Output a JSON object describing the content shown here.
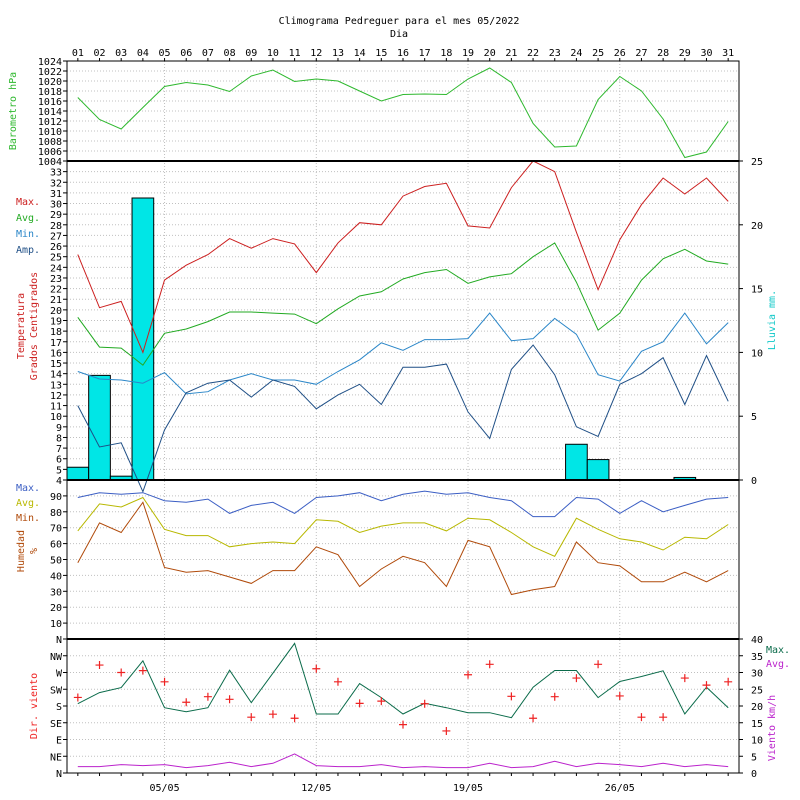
{
  "title": "Climograma Pedreguer para el mes 05/2022",
  "subtitle": "Dia",
  "colors": {
    "frame": "#000000",
    "grid": "#c0c0c0",
    "barometer": "#2eb82e",
    "temp_max": "#cc1f1f",
    "temp_avg": "#22aa22",
    "temp_min": "#2a86c8",
    "temp_amp": "#1f4f86",
    "rain_fill": "#00e6e6",
    "hum_max": "#3b5ec4",
    "hum_avg": "#b8b800",
    "hum_min": "#b04a0a",
    "wind_dir": "#ee2222",
    "wind_max": "#0a6b4a",
    "wind_avg": "#bb22cc"
  },
  "days": [
    "01",
    "02",
    "03",
    "04",
    "05",
    "06",
    "07",
    "08",
    "09",
    "10",
    "11",
    "12",
    "13",
    "14",
    "15",
    "16",
    "17",
    "18",
    "19",
    "20",
    "21",
    "22",
    "23",
    "24",
    "25",
    "26",
    "27",
    "28",
    "29",
    "30",
    "31"
  ],
  "bottom_dates": [
    "05/05",
    "12/05",
    "19/05",
    "26/05"
  ],
  "chart_data": [
    {
      "type": "line",
      "name": "barometer",
      "ylabel": "Barometro hPa",
      "ylim": [
        1004,
        1024
      ],
      "yticks": [
        1004,
        1006,
        1008,
        1010,
        1012,
        1014,
        1016,
        1018,
        1020,
        1022,
        1024
      ],
      "series": [
        {
          "name": "",
          "values": [
            1016.7,
            1012.3,
            1010.4,
            1014.7,
            1018.9,
            1019.7,
            1019.2,
            1017.9,
            1021.0,
            1022.2,
            1019.9,
            1020.4,
            1020.0,
            1018.0,
            1016.0,
            1017.3,
            1017.4,
            1017.3,
            1020.4,
            1022.6,
            1019.7,
            1011.5,
            1006.8,
            1007.0,
            1016.3,
            1020.9,
            1018.0,
            1012.4,
            1004.7,
            1005.8,
            1011.9
          ]
        }
      ]
    },
    {
      "type": "line+bar",
      "name": "temperature",
      "ylabel": "Temperatura Grados Centigrados",
      "y2label": "Lluvia mm.",
      "ylim": [
        4,
        34
      ],
      "yticks": [
        4,
        5,
        6,
        7,
        8,
        9,
        10,
        11,
        12,
        13,
        14,
        15,
        16,
        17,
        18,
        19,
        20,
        21,
        22,
        23,
        24,
        25,
        26,
        27,
        28,
        29,
        30,
        31,
        32,
        33
      ],
      "y2lim": [
        0,
        25
      ],
      "y2ticks": [
        0,
        5,
        10,
        15,
        20,
        25
      ],
      "legend": [
        "Max.",
        "Avg.",
        "Min.",
        "Amp."
      ],
      "series": [
        {
          "name": "Max.",
          "values": [
            25.2,
            20.2,
            20.8,
            16.0,
            22.8,
            24.2,
            25.2,
            26.7,
            25.8,
            26.7,
            26.2,
            23.5,
            26.3,
            28.2,
            28.0,
            30.7,
            31.6,
            31.9,
            27.9,
            27.7,
            31.5,
            34.0,
            33.0,
            27.3,
            21.9,
            26.6,
            29.9,
            32.4,
            30.9,
            32.4,
            30.2
          ]
        },
        {
          "name": "Avg.",
          "values": [
            19.3,
            16.5,
            16.4,
            14.8,
            17.8,
            18.2,
            18.9,
            19.8,
            19.8,
            19.7,
            19.6,
            18.7,
            20.1,
            21.3,
            21.7,
            22.9,
            23.5,
            23.8,
            22.5,
            23.1,
            23.4,
            25.0,
            26.3,
            22.6,
            18.1,
            19.7,
            22.8,
            24.8,
            25.7,
            24.6,
            24.3
          ]
        },
        {
          "name": "Min.",
          "values": [
            14.2,
            13.5,
            13.4,
            13.1,
            14.1,
            12.1,
            12.3,
            13.4,
            14.0,
            13.4,
            13.4,
            13.0,
            14.2,
            15.3,
            16.9,
            16.2,
            17.2,
            17.2,
            17.3,
            19.7,
            17.1,
            17.3,
            19.2,
            17.7,
            13.9,
            13.3,
            16.1,
            17.0,
            19.7,
            16.8,
            18.8
          ]
        },
        {
          "name": "Amp.",
          "values": [
            11.0,
            7.1,
            7.5,
            2.9,
            8.7,
            12.2,
            13.1,
            13.4,
            11.8,
            13.4,
            12.8,
            10.7,
            12.0,
            13.0,
            11.1,
            14.6,
            14.6,
            14.9,
            10.4,
            7.9,
            14.4,
            16.7,
            13.9,
            9.0,
            8.1,
            13.0,
            14.0,
            15.5,
            11.1,
            15.7,
            11.4
          ]
        }
      ],
      "rain": [
        1.0,
        8.2,
        0.3,
        22.1,
        0,
        0,
        0,
        0,
        0,
        0,
        0,
        0,
        0,
        0,
        0,
        0,
        0,
        0,
        0,
        0,
        0,
        0,
        0,
        2.8,
        1.6,
        0,
        0,
        0,
        0.2,
        0,
        0
      ]
    },
    {
      "type": "line",
      "name": "humidity",
      "ylabel": "Humedad %",
      "ylim": [
        0,
        100
      ],
      "yticks": [
        10,
        20,
        30,
        40,
        50,
        60,
        70,
        80,
        90
      ],
      "legend": [
        "Max.",
        "Avg.",
        "Min."
      ],
      "series": [
        {
          "name": "Max.",
          "values": [
            89,
            92,
            91,
            92,
            87,
            86,
            88,
            79,
            84,
            86,
            79,
            89,
            90,
            92,
            87,
            91,
            93,
            91,
            92,
            89,
            87,
            77,
            77,
            89,
            88,
            79,
            87,
            80,
            84,
            88,
            89
          ]
        },
        {
          "name": "Avg.",
          "values": [
            68,
            85,
            83,
            89,
            69,
            65,
            65,
            58,
            60,
            61,
            60,
            75,
            74,
            67,
            71,
            73,
            73,
            68,
            76,
            75,
            67,
            58,
            52,
            76,
            69,
            63,
            61,
            56,
            64,
            63,
            72
          ]
        },
        {
          "name": "Min.",
          "values": [
            48,
            73,
            67,
            86,
            45,
            42,
            43,
            39,
            35,
            43,
            43,
            58,
            53,
            33,
            44,
            52,
            48,
            33,
            62,
            58,
            28,
            31,
            33,
            61,
            48,
            46,
            36,
            36,
            42,
            36,
            43
          ]
        }
      ]
    },
    {
      "type": "line+scatter",
      "name": "wind",
      "ylabel": "Dir. viento",
      "y2label": "Viento km/h",
      "dir_ticks": [
        "N",
        "NE",
        "E",
        "SE",
        "S",
        "SW",
        "W",
        "NW",
        "N"
      ],
      "y2lim": [
        0,
        40
      ],
      "y2ticks": [
        0,
        5,
        10,
        15,
        20,
        25,
        30,
        35,
        40
      ],
      "legend": [
        "Max.",
        "Avg."
      ],
      "direction_degrees": [
        203,
        290,
        270,
        275,
        245,
        190,
        205,
        198,
        150,
        158,
        147,
        280,
        245,
        187,
        193,
        130,
        186,
        113,
        264,
        292,
        206,
        147,
        205,
        255,
        292,
        207,
        150,
        150,
        255,
        236,
        245
      ],
      "series": [
        {
          "name": "Max.",
          "values": [
            20.7,
            24.0,
            25.5,
            33.5,
            19.5,
            18.3,
            19.5,
            30.7,
            21.0,
            29.8,
            38.7,
            17.6,
            17.6,
            26.7,
            22.5,
            17.6,
            20.8,
            19.5,
            18.0,
            18.0,
            16.5,
            25.6,
            30.6,
            30.6,
            22.5,
            27.3,
            28.8,
            30.5,
            17.6,
            25.6,
            19.5
          ]
        },
        {
          "name": "Avg.",
          "values": [
            1.9,
            1.9,
            2.5,
            2.2,
            2.5,
            1.6,
            2.2,
            3.2,
            1.9,
            2.9,
            5.7,
            2.2,
            1.9,
            1.9,
            2.5,
            1.6,
            1.9,
            1.6,
            1.6,
            2.9,
            1.6,
            1.9,
            3.5,
            1.9,
            2.9,
            2.5,
            1.9,
            2.9,
            1.9,
            2.5,
            1.9
          ]
        }
      ]
    }
  ]
}
